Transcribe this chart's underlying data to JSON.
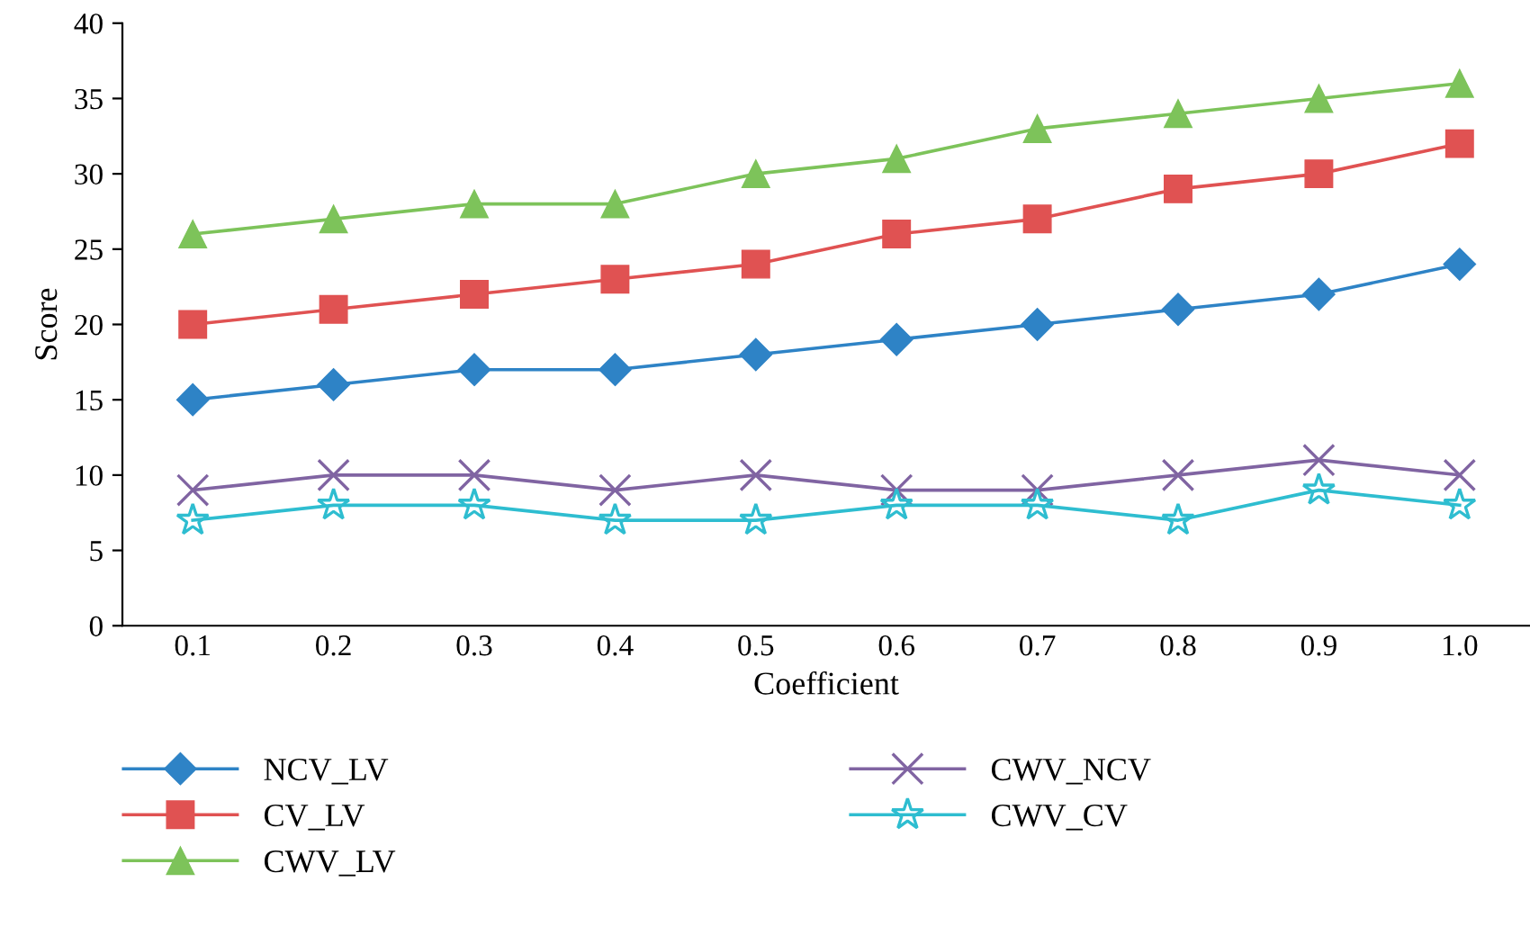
{
  "chart_data": {
    "type": "line",
    "xlabel": "Coefficient",
    "ylabel": "Score",
    "categories": [
      "0.1",
      "0.2",
      "0.3",
      "0.4",
      "0.5",
      "0.6",
      "0.7",
      "0.8",
      "0.9",
      "1.0"
    ],
    "series": [
      {
        "name": "NCV_LV",
        "color": "#2e83c6",
        "marker": "diamond",
        "values": [
          15,
          16,
          17,
          17,
          18,
          19,
          20,
          21,
          22,
          24
        ]
      },
      {
        "name": "CV_LV",
        "color": "#e05252",
        "marker": "square",
        "values": [
          20,
          21,
          22,
          23,
          24,
          26,
          27,
          29,
          30,
          32
        ]
      },
      {
        "name": "CWV_LV",
        "color": "#7dc35a",
        "marker": "triangle",
        "values": [
          26,
          27,
          28,
          28,
          30,
          31,
          33,
          34,
          35,
          36
        ]
      },
      {
        "name": "CWV_NCV",
        "color": "#8064a2",
        "marker": "cross",
        "values": [
          9,
          10,
          10,
          9,
          10,
          9,
          9,
          10,
          11,
          10
        ]
      },
      {
        "name": "CWV_CV",
        "color": "#2ebdd0",
        "marker": "star",
        "values": [
          7,
          8,
          8,
          7,
          7,
          8,
          8,
          7,
          9,
          8
        ]
      }
    ],
    "ylim": [
      0,
      40
    ],
    "yticks": [
      0,
      5,
      10,
      15,
      20,
      25,
      30,
      35,
      40
    ],
    "grid": false,
    "legend": "bottom",
    "line_style": "solid"
  }
}
